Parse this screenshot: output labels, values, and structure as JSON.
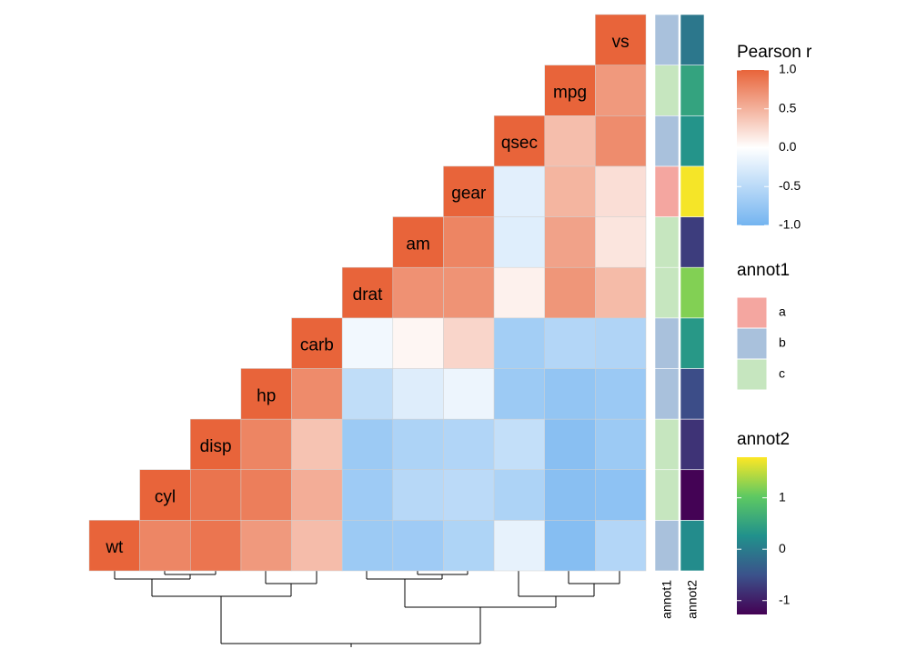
{
  "chart_data": {
    "type": "heatmap",
    "variables": [
      "wt",
      "cyl",
      "disp",
      "hp",
      "carb",
      "drat",
      "am",
      "gear",
      "qsec",
      "mpg",
      "vs"
    ],
    "matrix": [
      [
        1,
        0.78,
        0.89,
        0.66,
        0.43,
        -0.71,
        -0.69,
        -0.58,
        -0.17,
        -0.87,
        -0.55
      ],
      [
        null,
        1,
        0.9,
        0.83,
        0.53,
        -0.7,
        -0.52,
        -0.49,
        -0.59,
        -0.85,
        -0.81
      ],
      [
        null,
        null,
        1,
        0.79,
        0.39,
        -0.71,
        -0.59,
        -0.56,
        -0.43,
        -0.85,
        -0.71
      ],
      [
        null,
        null,
        null,
        1,
        0.75,
        -0.45,
        -0.24,
        -0.13,
        -0.71,
        -0.78,
        -0.72
      ],
      [
        null,
        null,
        null,
        null,
        1,
        -0.09,
        0.06,
        0.27,
        -0.66,
        -0.55,
        -0.57
      ],
      [
        null,
        null,
        null,
        null,
        null,
        1,
        0.71,
        0.7,
        0.09,
        0.68,
        0.44
      ],
      [
        null,
        null,
        null,
        null,
        null,
        null,
        1,
        0.79,
        -0.23,
        0.6,
        0.17
      ],
      [
        null,
        null,
        null,
        null,
        null,
        null,
        null,
        1,
        -0.21,
        0.48,
        0.21
      ],
      [
        null,
        null,
        null,
        null,
        null,
        null,
        null,
        null,
        1,
        0.42,
        0.74
      ],
      [
        null,
        null,
        null,
        null,
        null,
        null,
        null,
        null,
        null,
        1,
        0.66
      ],
      [
        null,
        null,
        null,
        null,
        null,
        null,
        null,
        null,
        null,
        null,
        1
      ]
    ],
    "color_low": "#74b4f0",
    "color_mid": "#ffffff",
    "color_high": "#e8643a",
    "legend_title": "Pearson r",
    "clim": [
      -1,
      1
    ],
    "cticks": [
      {
        "value": 1,
        "label": "1.0"
      },
      {
        "value": 0.5,
        "label": "0.5"
      },
      {
        "value": 0,
        "label": "0.0"
      },
      {
        "value": -0.5,
        "label": "-0.5"
      },
      {
        "value": -1,
        "label": "-1.0"
      }
    ],
    "annot1": {
      "name": "annot1",
      "levels": [
        "a",
        "b",
        "c"
      ],
      "colors": [
        "#f4a6a0",
        "#a9c1dc",
        "#c6e6bf"
      ],
      "values": [
        "b",
        "c",
        "c",
        "b",
        "b",
        "c",
        "c",
        "a",
        "b",
        "c",
        "b"
      ]
    },
    "annot2": {
      "name": "annot2",
      "colors": [
        "#440154",
        "#3b528b",
        "#21918c",
        "#5ec962",
        "#fde725"
      ],
      "lim": [
        -1.27,
        1.79
      ],
      "ticks": [
        -1,
        0,
        1
      ],
      "values": [
        0.2,
        -1.25,
        -0.8,
        -0.55,
        0.35,
        1.2,
        -0.7,
        1.75,
        0.3,
        0.5,
        -0.05
      ]
    }
  }
}
